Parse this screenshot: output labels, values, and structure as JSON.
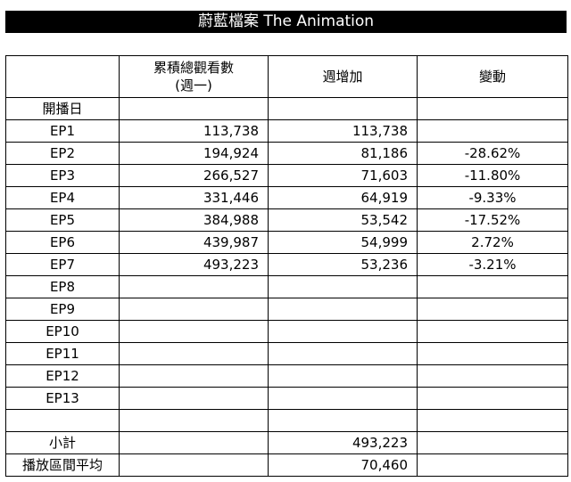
{
  "title": "蔚藍檔案 The Animation",
  "headers": {
    "col0": "",
    "cumulative_line1": "累積總觀看數",
    "cumulative_line2": "(週一)",
    "weekly": "週增加",
    "change": "變動"
  },
  "rows": [
    {
      "label": "開播日",
      "cumulative": "",
      "weekly": "",
      "change": ""
    },
    {
      "label": "EP1",
      "cumulative": "113,738",
      "weekly": "113,738",
      "change": ""
    },
    {
      "label": "EP2",
      "cumulative": "194,924",
      "weekly": "81,186",
      "change": "-28.62%"
    },
    {
      "label": "EP3",
      "cumulative": "266,527",
      "weekly": "71,603",
      "change": "-11.80%"
    },
    {
      "label": "EP4",
      "cumulative": "331,446",
      "weekly": "64,919",
      "change": "-9.33%"
    },
    {
      "label": "EP5",
      "cumulative": "384,988",
      "weekly": "53,542",
      "change": "-17.52%"
    },
    {
      "label": "EP6",
      "cumulative": "439,987",
      "weekly": "54,999",
      "change": "2.72%"
    },
    {
      "label": "EP7",
      "cumulative": "493,223",
      "weekly": "53,236",
      "change": "-3.21%"
    },
    {
      "label": "EP8",
      "cumulative": "",
      "weekly": "",
      "change": ""
    },
    {
      "label": "EP9",
      "cumulative": "",
      "weekly": "",
      "change": ""
    },
    {
      "label": "EP10",
      "cumulative": "",
      "weekly": "",
      "change": ""
    },
    {
      "label": "EP11",
      "cumulative": "",
      "weekly": "",
      "change": ""
    },
    {
      "label": "EP12",
      "cumulative": "",
      "weekly": "",
      "change": ""
    },
    {
      "label": "EP13",
      "cumulative": "",
      "weekly": "",
      "change": ""
    },
    {
      "label": "",
      "cumulative": "",
      "weekly": "",
      "change": ""
    },
    {
      "label": "小計",
      "cumulative": "",
      "weekly": "493,223",
      "change": ""
    },
    {
      "label": "播放區間平均",
      "cumulative": "",
      "weekly": "70,460",
      "change": ""
    }
  ]
}
